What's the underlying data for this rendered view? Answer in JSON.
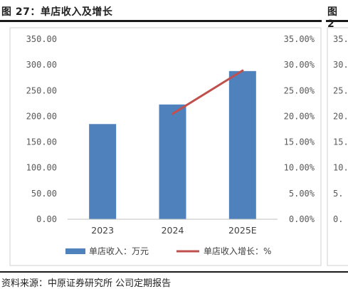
{
  "figure": {
    "title": "图 27：单店收入及增长",
    "next_title_fragment": "图 2",
    "source": "资料来源：中原证券研究所  公司定期报告",
    "colors": {
      "bar": "#4f81bd",
      "line": "#c0504d",
      "rule": "#1a1a1a"
    }
  },
  "next_panel": {
    "tick_labels_left": [
      "35.",
      "30.",
      "25.",
      "20.",
      "15.",
      "10.",
      "5.",
      "0."
    ]
  },
  "chart_data": {
    "type": "bar",
    "title": "",
    "categories": [
      "2023",
      "2024",
      "2025E"
    ],
    "series": [
      {
        "name": "单店收入：万元",
        "type": "bar",
        "axis": "left",
        "color": "#4f81bd",
        "values": [
          185,
          223,
          288
        ]
      },
      {
        "name": "单店收入增长：%",
        "type": "line",
        "axis": "right",
        "color": "#c0504d",
        "values": [
          null,
          20.5,
          28.9
        ]
      }
    ],
    "y_left": {
      "min": 0,
      "max": 350,
      "step": 50,
      "tick_labels": [
        "350.00",
        "300.00",
        "250.00",
        "200.00",
        "150.00",
        "100.00",
        "50.00",
        "0.00"
      ]
    },
    "y_right": {
      "min": 0,
      "max": 35,
      "step": 5,
      "tick_labels": [
        "35.00%",
        "30.00%",
        "25.00%",
        "20.00%",
        "15.00%",
        "10.00%",
        "5.00%",
        "0.00%"
      ]
    },
    "grid": false,
    "legend_position": "bottom"
  }
}
